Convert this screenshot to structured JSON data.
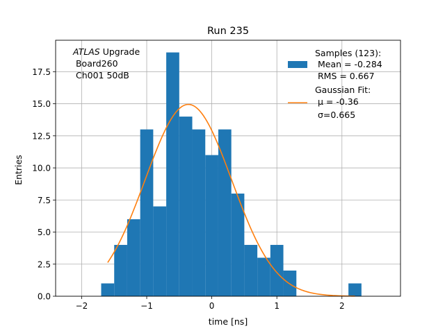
{
  "chart_data": {
    "type": "bar",
    "title": "Run 235",
    "xlabel": "time [ns]",
    "ylabel": "Entries",
    "xlim": [
      -2.4,
      2.9
    ],
    "ylim": [
      0,
      19.95
    ],
    "xticks": [
      -2,
      -1,
      0,
      1,
      2
    ],
    "xtick_labels": [
      "−2",
      "−1",
      "0",
      "1",
      "2"
    ],
    "yticks": [
      0,
      2.5,
      5,
      7.5,
      10,
      12.5,
      15,
      17.5
    ],
    "ytick_labels": [
      "0.0",
      "2.5",
      "5.0",
      "7.5",
      "10.0",
      "12.5",
      "15.0",
      "17.5"
    ],
    "grid": true,
    "annotation": {
      "italic": "ATLAS",
      "line1_rest": " Upgrade",
      "line2": " Board260",
      "line3": " Ch001 50dB"
    },
    "histogram": {
      "name": "Samples (123):",
      "color": "#1f77b4",
      "bin_edges": [
        -1.7,
        -1.5,
        -1.3,
        -1.1,
        -0.9,
        -0.7,
        -0.5,
        -0.3,
        -0.1,
        0.1,
        0.3,
        0.5,
        0.7,
        0.9,
        1.1,
        1.3,
        1.5,
        1.7,
        1.9,
        2.1,
        2.3
      ],
      "counts": [
        1,
        4,
        6,
        13,
        7,
        19,
        14,
        13,
        11,
        13,
        8,
        4,
        3,
        4,
        2,
        0,
        0,
        0,
        0,
        1
      ]
    },
    "fit": {
      "name": "Gaussian Fit:",
      "color": "#ff7f0e",
      "amplitude": 14.95,
      "mu": -0.36,
      "sigma": 0.665,
      "x_start": -1.6,
      "x_end": 2.2
    },
    "legend": {
      "position": "top-right",
      "samples_lines": [
        "Samples (123):",
        " Mean = -0.284",
        " RMS = 0.667"
      ],
      "fit_lines": [
        "Gaussian Fit:",
        " μ = -0.36",
        "σ=0.665"
      ]
    }
  }
}
